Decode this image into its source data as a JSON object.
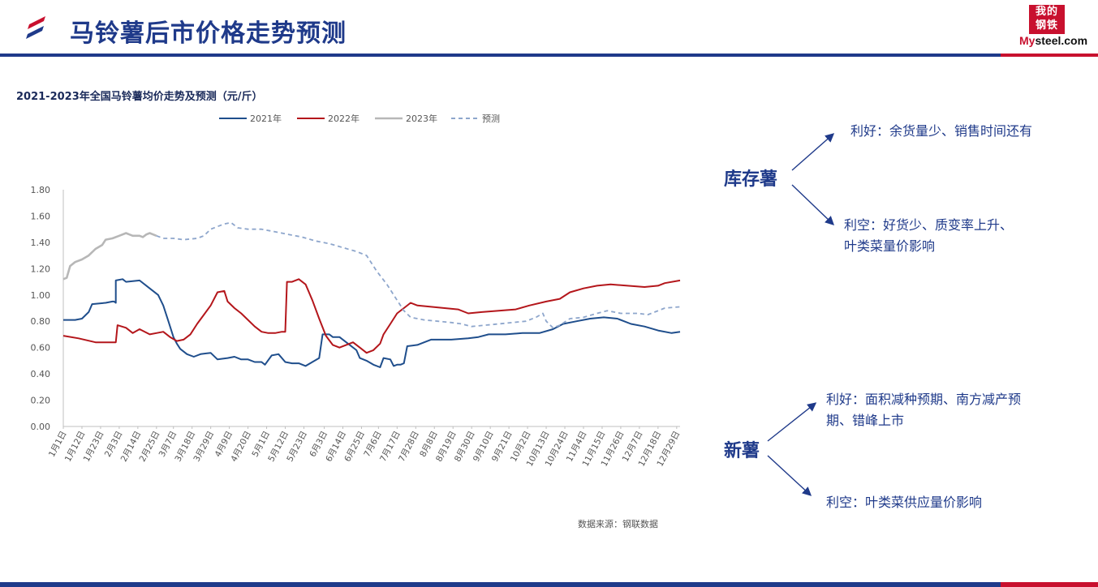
{
  "header": {
    "title": "马铃薯后市价格走势预测",
    "brand_seal": [
      "我的",
      "钢铁"
    ],
    "brand_word_prefix": "My",
    "brand_word_suffix": "steel.com"
  },
  "colors": {
    "primary": "#1f3a8a",
    "accent": "#c8102e",
    "series_2021": "#1f4e8c",
    "series_2022": "#b4161b",
    "series_2023": "#b7b7b7",
    "series_forecast": "#8ea6cc"
  },
  "chart_data": {
    "type": "line",
    "title": "2021-2023年全国马铃薯均价走势及预测（元/斤）",
    "xlabel": "",
    "ylabel": "",
    "ylim": [
      0,
      1.8
    ],
    "yticks": [
      "1.80",
      "1.60",
      "1.40",
      "1.20",
      "1.00",
      "0.80",
      "0.60",
      "0.40",
      "0.20",
      "0.00"
    ],
    "xlim": [
      1,
      365
    ],
    "x_ticks": [
      {
        "day": 1,
        "label": "1月1日"
      },
      {
        "day": 12,
        "label": "1月12日"
      },
      {
        "day": 23,
        "label": "1月23日"
      },
      {
        "day": 34,
        "label": "2月3日"
      },
      {
        "day": 45,
        "label": "2月14日"
      },
      {
        "day": 56,
        "label": "2月25日"
      },
      {
        "day": 66,
        "label": "3月7日"
      },
      {
        "day": 77,
        "label": "3月18日"
      },
      {
        "day": 88,
        "label": "3月29日"
      },
      {
        "day": 99,
        "label": "4月9日"
      },
      {
        "day": 110,
        "label": "4月20日"
      },
      {
        "day": 121,
        "label": "5月1日"
      },
      {
        "day": 132,
        "label": "5月12日"
      },
      {
        "day": 143,
        "label": "5月23日"
      },
      {
        "day": 155,
        "label": "6月3日"
      },
      {
        "day": 166,
        "label": "6月14日"
      },
      {
        "day": 177,
        "label": "6月25日"
      },
      {
        "day": 187,
        "label": "7月6日"
      },
      {
        "day": 198,
        "label": "7月17日"
      },
      {
        "day": 209,
        "label": "7月28日"
      },
      {
        "day": 220,
        "label": "8月8日"
      },
      {
        "day": 231,
        "label": "8月19日"
      },
      {
        "day": 242,
        "label": "8月30日"
      },
      {
        "day": 253,
        "label": "9月10日"
      },
      {
        "day": 264,
        "label": "9月21日"
      },
      {
        "day": 275,
        "label": "10月2日"
      },
      {
        "day": 286,
        "label": "10月13日"
      },
      {
        "day": 297,
        "label": "10月24日"
      },
      {
        "day": 308,
        "label": "11月4日"
      },
      {
        "day": 319,
        "label": "11月15日"
      },
      {
        "day": 330,
        "label": "11月26日"
      },
      {
        "day": 341,
        "label": "12月7日"
      },
      {
        "day": 352,
        "label": "12月18日"
      },
      {
        "day": 363,
        "label": "12月29日"
      }
    ],
    "legend_position": "top",
    "grid": false,
    "series": [
      {
        "name": "2021年",
        "style": "solid",
        "points": [
          [
            1,
            0.81
          ],
          [
            8,
            0.81
          ],
          [
            12,
            0.82
          ],
          [
            16,
            0.87
          ],
          [
            18,
            0.93
          ],
          [
            26,
            0.94
          ],
          [
            30,
            0.95
          ],
          [
            31,
            0.95
          ],
          [
            32,
            0.94
          ],
          [
            32,
            1.11
          ],
          [
            36,
            1.12
          ],
          [
            38,
            1.1
          ],
          [
            46,
            1.11
          ],
          [
            52,
            1.05
          ],
          [
            57,
            1.0
          ],
          [
            60,
            0.92
          ],
          [
            63,
            0.8
          ],
          [
            66,
            0.68
          ],
          [
            68,
            0.63
          ],
          [
            70,
            0.59
          ],
          [
            74,
            0.55
          ],
          [
            78,
            0.53
          ],
          [
            82,
            0.55
          ],
          [
            88,
            0.56
          ],
          [
            92,
            0.51
          ],
          [
            98,
            0.52
          ],
          [
            102,
            0.53
          ],
          [
            106,
            0.51
          ],
          [
            110,
            0.51
          ],
          [
            114,
            0.49
          ],
          [
            118,
            0.49
          ],
          [
            120,
            0.47
          ],
          [
            124,
            0.54
          ],
          [
            128,
            0.55
          ],
          [
            132,
            0.49
          ],
          [
            136,
            0.48
          ],
          [
            140,
            0.48
          ],
          [
            144,
            0.46
          ],
          [
            148,
            0.49
          ],
          [
            152,
            0.52
          ],
          [
            154,
            0.7
          ],
          [
            158,
            0.7
          ],
          [
            160,
            0.68
          ],
          [
            164,
            0.68
          ],
          [
            166,
            0.66
          ],
          [
            170,
            0.62
          ],
          [
            174,
            0.58
          ],
          [
            176,
            0.52
          ],
          [
            180,
            0.5
          ],
          [
            184,
            0.47
          ],
          [
            188,
            0.45
          ],
          [
            190,
            0.52
          ],
          [
            194,
            0.51
          ],
          [
            196,
            0.46
          ],
          [
            198,
            0.47
          ],
          [
            200,
            0.47
          ],
          [
            202,
            0.48
          ],
          [
            204,
            0.61
          ],
          [
            210,
            0.62
          ],
          [
            214,
            0.64
          ],
          [
            218,
            0.66
          ],
          [
            230,
            0.66
          ],
          [
            240,
            0.67
          ],
          [
            246,
            0.68
          ],
          [
            252,
            0.7
          ],
          [
            262,
            0.7
          ],
          [
            272,
            0.71
          ],
          [
            282,
            0.71
          ],
          [
            290,
            0.74
          ],
          [
            296,
            0.78
          ],
          [
            304,
            0.8
          ],
          [
            312,
            0.82
          ],
          [
            320,
            0.83
          ],
          [
            328,
            0.82
          ],
          [
            336,
            0.78
          ],
          [
            344,
            0.76
          ],
          [
            352,
            0.73
          ],
          [
            360,
            0.71
          ],
          [
            365,
            0.72
          ]
        ]
      },
      {
        "name": "2022年",
        "style": "solid",
        "points": [
          [
            1,
            0.69
          ],
          [
            10,
            0.67
          ],
          [
            20,
            0.64
          ],
          [
            30,
            0.64
          ],
          [
            32,
            0.64
          ],
          [
            33,
            0.77
          ],
          [
            38,
            0.75
          ],
          [
            42,
            0.71
          ],
          [
            46,
            0.74
          ],
          [
            52,
            0.7
          ],
          [
            56,
            0.71
          ],
          [
            60,
            0.72
          ],
          [
            64,
            0.68
          ],
          [
            68,
            0.65
          ],
          [
            72,
            0.66
          ],
          [
            76,
            0.7
          ],
          [
            80,
            0.78
          ],
          [
            84,
            0.85
          ],
          [
            88,
            0.92
          ],
          [
            92,
            1.02
          ],
          [
            96,
            1.03
          ],
          [
            98,
            0.95
          ],
          [
            102,
            0.9
          ],
          [
            106,
            0.86
          ],
          [
            110,
            0.81
          ],
          [
            114,
            0.76
          ],
          [
            118,
            0.72
          ],
          [
            122,
            0.71
          ],
          [
            126,
            0.71
          ],
          [
            130,
            0.72
          ],
          [
            132,
            0.72
          ],
          [
            133,
            1.1
          ],
          [
            136,
            1.1
          ],
          [
            140,
            1.12
          ],
          [
            144,
            1.08
          ],
          [
            148,
            0.96
          ],
          [
            152,
            0.82
          ],
          [
            156,
            0.69
          ],
          [
            160,
            0.62
          ],
          [
            164,
            0.6
          ],
          [
            168,
            0.62
          ],
          [
            172,
            0.64
          ],
          [
            176,
            0.6
          ],
          [
            180,
            0.56
          ],
          [
            184,
            0.58
          ],
          [
            188,
            0.63
          ],
          [
            190,
            0.7
          ],
          [
            194,
            0.78
          ],
          [
            198,
            0.86
          ],
          [
            202,
            0.9
          ],
          [
            206,
            0.94
          ],
          [
            210,
            0.92
          ],
          [
            218,
            0.91
          ],
          [
            226,
            0.9
          ],
          [
            234,
            0.89
          ],
          [
            240,
            0.86
          ],
          [
            248,
            0.87
          ],
          [
            258,
            0.88
          ],
          [
            268,
            0.89
          ],
          [
            276,
            0.92
          ],
          [
            286,
            0.95
          ],
          [
            294,
            0.97
          ],
          [
            300,
            1.02
          ],
          [
            308,
            1.05
          ],
          [
            316,
            1.07
          ],
          [
            324,
            1.08
          ],
          [
            334,
            1.07
          ],
          [
            344,
            1.06
          ],
          [
            352,
            1.07
          ],
          [
            356,
            1.09
          ],
          [
            365,
            1.11
          ]
        ]
      },
      {
        "name": "2023年",
        "style": "solid",
        "points": [
          [
            1,
            1.12
          ],
          [
            3,
            1.13
          ],
          [
            5,
            1.22
          ],
          [
            8,
            1.25
          ],
          [
            12,
            1.27
          ],
          [
            16,
            1.3
          ],
          [
            20,
            1.35
          ],
          [
            24,
            1.38
          ],
          [
            26,
            1.42
          ],
          [
            30,
            1.43
          ],
          [
            34,
            1.45
          ],
          [
            38,
            1.47
          ],
          [
            40,
            1.46
          ],
          [
            42,
            1.45
          ],
          [
            46,
            1.45
          ],
          [
            48,
            1.44
          ],
          [
            50,
            1.46
          ],
          [
            52,
            1.47
          ],
          [
            54,
            1.46
          ],
          [
            56,
            1.45
          ]
        ]
      },
      {
        "name": "预测",
        "style": "dashed",
        "points": [
          [
            56,
            1.45
          ],
          [
            60,
            1.43
          ],
          [
            66,
            1.43
          ],
          [
            72,
            1.42
          ],
          [
            80,
            1.43
          ],
          [
            84,
            1.45
          ],
          [
            88,
            1.5
          ],
          [
            92,
            1.52
          ],
          [
            96,
            1.54
          ],
          [
            100,
            1.55
          ],
          [
            104,
            1.51
          ],
          [
            110,
            1.5
          ],
          [
            118,
            1.5
          ],
          [
            126,
            1.48
          ],
          [
            134,
            1.46
          ],
          [
            142,
            1.44
          ],
          [
            150,
            1.41
          ],
          [
            158,
            1.39
          ],
          [
            166,
            1.36
          ],
          [
            174,
            1.33
          ],
          [
            180,
            1.3
          ],
          [
            186,
            1.18
          ],
          [
            192,
            1.08
          ],
          [
            198,
            0.96
          ],
          [
            202,
            0.88
          ],
          [
            206,
            0.83
          ],
          [
            214,
            0.81
          ],
          [
            222,
            0.8
          ],
          [
            230,
            0.79
          ],
          [
            236,
            0.78
          ],
          [
            242,
            0.76
          ],
          [
            250,
            0.77
          ],
          [
            258,
            0.78
          ],
          [
            266,
            0.79
          ],
          [
            274,
            0.8
          ],
          [
            280,
            0.83
          ],
          [
            284,
            0.86
          ],
          [
            286,
            0.8
          ],
          [
            290,
            0.75
          ],
          [
            294,
            0.77
          ],
          [
            300,
            0.82
          ],
          [
            308,
            0.83
          ],
          [
            316,
            0.86
          ],
          [
            322,
            0.88
          ],
          [
            330,
            0.86
          ],
          [
            340,
            0.86
          ],
          [
            346,
            0.85
          ],
          [
            350,
            0.87
          ],
          [
            356,
            0.9
          ],
          [
            365,
            0.91
          ]
        ]
      }
    ]
  },
  "source": "数据来源：钢联数据",
  "analysis": {
    "stock": {
      "label": "库存薯",
      "bull": "利好：余货量少、销售时间还有",
      "bear_line1": "利空：好货少、质变率上升、",
      "bear_line2": "叶类菜量价影响"
    },
    "new": {
      "label": "新薯",
      "bull_line1": "利好：面积减种预期、南方减产预",
      "bull_line2": "期、错峰上市",
      "bear": "利空：叶类菜供应量价影响"
    }
  }
}
